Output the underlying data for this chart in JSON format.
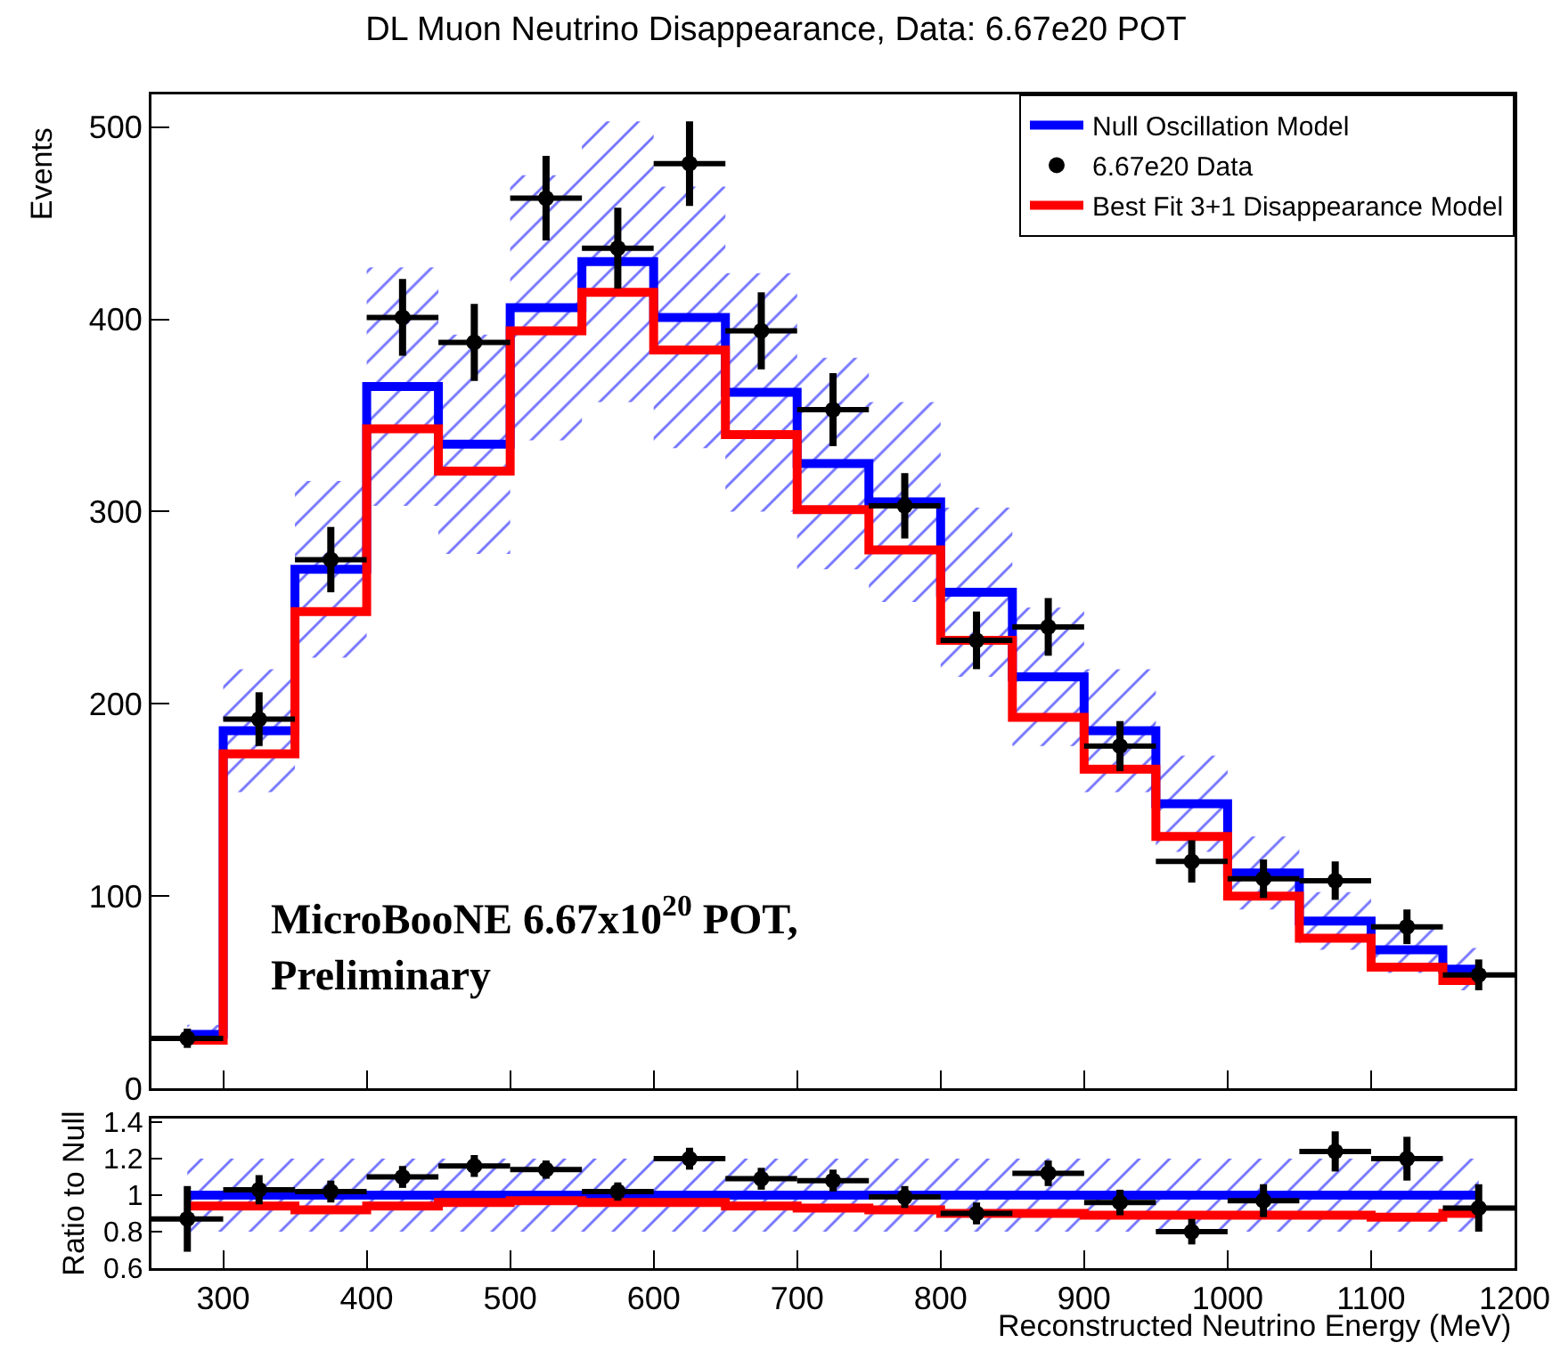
{
  "chart_data": [
    {
      "type": "step",
      "title": "DL Muon Neutrino Disappearance, Data: 6.67e20 POT",
      "ylabel": "Events",
      "x": [
        275,
        325,
        375,
        425,
        475,
        525,
        575,
        625,
        675,
        725,
        775,
        825,
        875,
        925,
        975,
        1025,
        1075,
        1125,
        1175
      ],
      "xlim": [
        250,
        1200
      ],
      "ylim": [
        0,
        517
      ],
      "xticks": [
        300,
        400,
        500,
        600,
        700,
        800,
        900,
        1000,
        1100,
        1200
      ],
      "yticks": [
        0,
        100,
        200,
        300,
        400,
        500
      ],
      "tick_labels": "y",
      "grid": false,
      "legend": "top right",
      "annotations": [
        "MicroBooNE 6.67x10$^{20}$ POT,\nPreliminary"
      ],
      "series": [
        {
          "name": "Null Oscillation Model",
          "color": "#0000ff",
          "values": [
            28,
            186,
            270,
            365,
            335,
            406,
            430,
            401,
            362,
            325,
            305,
            258,
            214,
            186,
            148,
            112,
            87,
            72,
            62
          ],
          "lower": [
            23,
            154,
            224,
            303,
            278,
            337,
            357,
            333,
            300,
            270,
            253,
            214,
            178,
            154,
            123,
            93,
            72,
            60,
            51
          ],
          "upper": [
            33,
            218,
            316,
            427,
            392,
            475,
            503,
            469,
            424,
            380,
            357,
            302,
            250,
            218,
            173,
            131,
            102,
            84,
            73
          ]
        },
        {
          "name": "6.67e20 Data",
          "type": "scatter",
          "marker": "circle",
          "color": "#000000",
          "values": [
            26,
            192,
            275,
            401,
            388,
            463,
            437,
            481,
            394,
            353,
            303,
            233,
            240,
            178,
            118,
            109,
            108,
            84,
            59
          ],
          "errors": [
            5,
            14,
            17,
            20,
            20,
            22,
            21,
            22,
            20,
            19,
            17,
            15,
            15,
            13,
            11,
            10,
            10,
            9,
            8
          ],
          "xerrors": [
            25,
            25,
            25,
            25,
            25,
            25,
            25,
            25,
            25,
            25,
            25,
            25,
            25,
            25,
            25,
            25,
            25,
            25,
            25
          ]
        },
        {
          "name": "Best Fit 3+1 Disappearance Model",
          "color": "#ff0000",
          "values": [
            25,
            174,
            248,
            343,
            321,
            394,
            414,
            384,
            340,
            301,
            280,
            233,
            193,
            166,
            131,
            100,
            78,
            63,
            56
          ]
        }
      ]
    },
    {
      "type": "step",
      "xlabel": "Reconstructed Neutrino Energy (MeV)",
      "ylabel": "Ratio to Null",
      "x": [
        275,
        325,
        375,
        425,
        475,
        525,
        575,
        625,
        675,
        725,
        775,
        825,
        875,
        925,
        975,
        1025,
        1075,
        1125,
        1175
      ],
      "xlim": [
        250,
        1200
      ],
      "ylim": [
        0.6,
        1.42
      ],
      "xticks": [
        300,
        400,
        500,
        600,
        700,
        800,
        900,
        1000,
        1100,
        1200
      ],
      "yticks": [
        0.6,
        0.8,
        1,
        1.2,
        1.4
      ],
      "grid": false,
      "legend": false,
      "series": [
        {
          "color": "#0000ff",
          "values": [
            1,
            1,
            1,
            1,
            1,
            1,
            1,
            1,
            1,
            1,
            1,
            1,
            1,
            1,
            1,
            1,
            1,
            1,
            1
          ],
          "lower": [
            0.8,
            0.8,
            0.8,
            0.8,
            0.8,
            0.8,
            0.8,
            0.8,
            0.8,
            0.8,
            0.8,
            0.8,
            0.8,
            0.8,
            0.8,
            0.8,
            0.8,
            0.8,
            0.8
          ],
          "upper": [
            1.2,
            1.2,
            1.2,
            1.2,
            1.2,
            1.2,
            1.2,
            1.2,
            1.2,
            1.2,
            1.2,
            1.2,
            1.2,
            1.2,
            1.2,
            1.2,
            1.2,
            1.2,
            1.2
          ]
        },
        {
          "type": "scatter",
          "marker": "circle",
          "color": "#000000",
          "values": [
            0.87,
            1.03,
            1.02,
            1.1,
            1.16,
            1.14,
            1.02,
            1.2,
            1.09,
            1.08,
            0.99,
            0.9,
            1.12,
            0.96,
            0.8,
            0.97,
            1.24,
            1.2,
            0.93
          ],
          "errors": [
            0.18,
            0.08,
            0.06,
            0.06,
            0.06,
            0.05,
            0.05,
            0.06,
            0.06,
            0.06,
            0.06,
            0.06,
            0.07,
            0.07,
            0.07,
            0.09,
            0.11,
            0.12,
            0.13
          ],
          "xerrors": [
            25,
            25,
            25,
            25,
            25,
            25,
            25,
            25,
            25,
            25,
            25,
            25,
            25,
            25,
            25,
            25,
            25,
            25,
            25
          ]
        },
        {
          "color": "#ff0000",
          "values": [
            0.94,
            0.94,
            0.92,
            0.94,
            0.96,
            0.97,
            0.96,
            0.96,
            0.94,
            0.93,
            0.92,
            0.9,
            0.9,
            0.89,
            0.89,
            0.89,
            0.89,
            0.88,
            0.9
          ]
        }
      ]
    }
  ]
}
